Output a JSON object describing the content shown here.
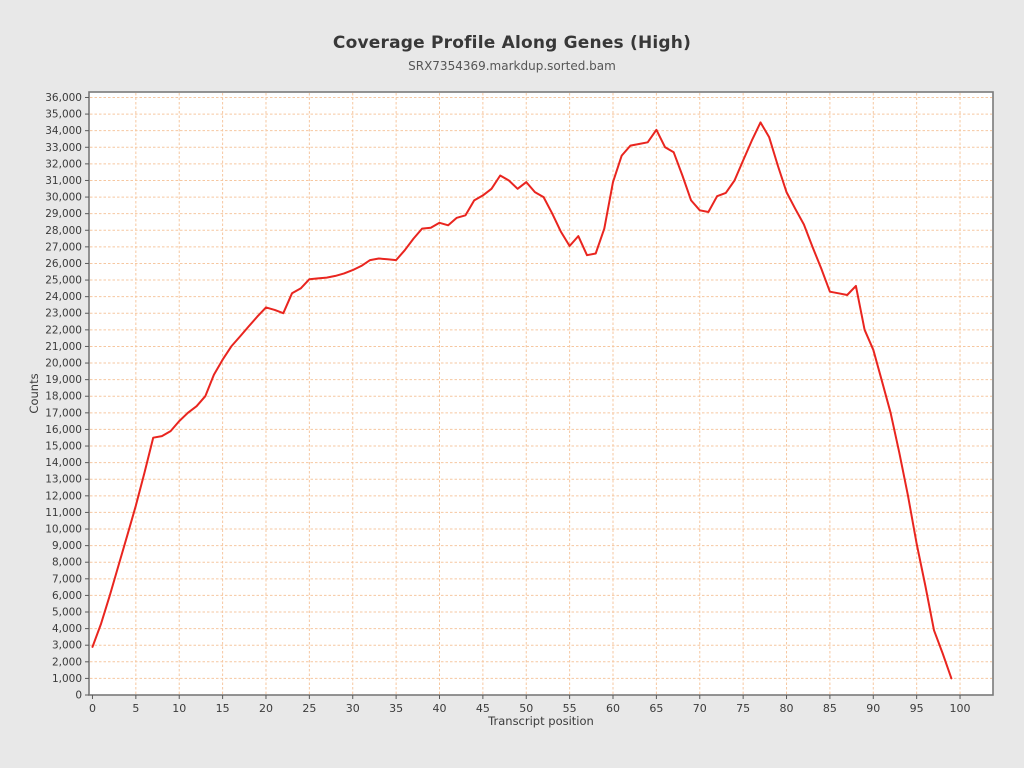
{
  "chart_data": {
    "type": "line",
    "title": "Coverage Profile Along Genes (High)",
    "subtitle": "SRX7354369.markdup.sorted.bam",
    "xlabel": "Transcript position",
    "ylabel": "Counts",
    "legend_position": "none",
    "grid": true,
    "xlim": [
      -0.4,
      103.8
    ],
    "ylim": [
      0,
      36330
    ],
    "x_ticks": [
      0,
      5,
      10,
      15,
      20,
      25,
      30,
      35,
      40,
      45,
      50,
      55,
      60,
      65,
      70,
      75,
      80,
      85,
      90,
      95,
      100
    ],
    "y_ticks": [
      0,
      1000,
      2000,
      3000,
      4000,
      5000,
      6000,
      7000,
      8000,
      9000,
      10000,
      11000,
      12000,
      13000,
      14000,
      15000,
      16000,
      17000,
      18000,
      19000,
      20000,
      21000,
      22000,
      23000,
      24000,
      25000,
      26000,
      27000,
      28000,
      29000,
      30000,
      31000,
      32000,
      33000,
      34000,
      35000,
      36000
    ],
    "x": [
      0,
      1,
      2,
      3,
      4,
      5,
      6,
      7,
      8,
      9,
      10,
      11,
      12,
      13,
      14,
      15,
      16,
      17,
      18,
      19,
      20,
      21,
      22,
      23,
      24,
      25,
      26,
      27,
      28,
      29,
      30,
      31,
      32,
      33,
      34,
      35,
      36,
      37,
      38,
      39,
      40,
      41,
      42,
      43,
      44,
      45,
      46,
      47,
      48,
      49,
      50,
      51,
      52,
      53,
      54,
      55,
      56,
      57,
      58,
      59,
      60,
      61,
      62,
      63,
      64,
      65,
      66,
      67,
      68,
      69,
      70,
      71,
      72,
      73,
      74,
      75,
      76,
      77,
      78,
      79,
      80,
      81,
      82,
      83,
      84,
      85,
      86,
      87,
      88,
      89,
      90,
      91,
      92,
      93,
      94,
      95,
      96,
      97,
      98,
      99
    ],
    "values": [
      2900,
      4300,
      6000,
      7800,
      9600,
      11400,
      13400,
      15500,
      15600,
      15900,
      16500,
      17000,
      17400,
      18000,
      19300,
      20200,
      21000,
      21600,
      22200,
      22800,
      23350,
      23200,
      23000,
      24200,
      24500,
      25050,
      25100,
      25150,
      25250,
      25400,
      25600,
      25850,
      26200,
      26300,
      26250,
      26200,
      26800,
      27500,
      28100,
      28150,
      28450,
      28300,
      28750,
      28900,
      29800,
      30100,
      30500,
      31300,
      31000,
      30500,
      30900,
      30300,
      30000,
      29000,
      27900,
      27050,
      27650,
      26500,
      26600,
      28100,
      30900,
      32500,
      33100,
      33200,
      33300,
      34050,
      33000,
      32700,
      31300,
      29800,
      29200,
      29100,
      30050,
      30250,
      31000,
      32200,
      33400,
      34500,
      33600,
      31900,
      30300,
      29300,
      28350,
      27000,
      25700,
      24300,
      24200,
      24100,
      24650,
      22000,
      20800,
      18900,
      17000,
      14600,
      12000,
      9100,
      6600,
      3900,
      2500,
      1000
    ],
    "colors": {
      "line": "#e9251f",
      "grid": "#f6c7a0",
      "plot_bg": "#ffffff",
      "page_bg": "#e8e8e8",
      "border": "#7a7a7a",
      "tick": "#5a5a5a",
      "text": "#3b3b3b"
    }
  }
}
